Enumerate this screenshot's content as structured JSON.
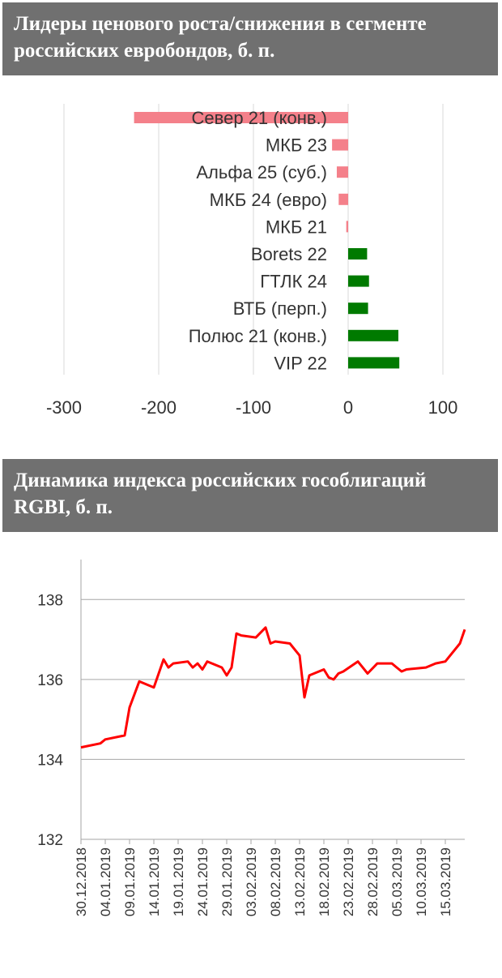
{
  "chart_data": [
    {
      "type": "bar",
      "orientation": "horizontal",
      "title": "Лидеры ценового роста/снижения в сегменте российских евробондов, б. п.",
      "categories": [
        "Север 21 (конв.)",
        "МКБ 23",
        "Альфа 25 (суб.)",
        "МКБ 24 (евро)",
        "МКБ 21",
        "Borets 22",
        "ГТЛК 24",
        "ВТБ (перп.)",
        "Полюс 21 (конв.)",
        "VIP 22"
      ],
      "values": [
        -226,
        -17,
        -12,
        -10,
        -2,
        20,
        22,
        21,
        53,
        54
      ],
      "xlim": [
        -300,
        120
      ],
      "xticks": [
        -300,
        -200,
        -100,
        0,
        100
      ],
      "colors": {
        "negative": "#f4808a",
        "positive": "#007a00"
      },
      "grid": true
    },
    {
      "type": "line",
      "title": "Динамика индекса российских гособлигаций RGBI, б. п.",
      "ylim": [
        132,
        139
      ],
      "yticks": [
        132,
        134,
        136,
        138
      ],
      "xtick_labels": [
        "30.12.2018",
        "04.01.2019",
        "09.01.2019",
        "14.01.2019",
        "19.01.2019",
        "24.01.2019",
        "29.01.2019",
        "03.02.2019",
        "08.02.2019",
        "13.02.2019",
        "18.02.2019",
        "23.02.2019",
        "28.02.2019",
        "05.03.2019",
        "10.03.2019",
        "15.03.2019"
      ],
      "x_start": "30.12.2018",
      "x_end": "19.03.2019",
      "series": [
        {
          "name": "",
          "color": "#ff0000",
          "points": [
            [
              "30.12.2018",
              134.3
            ],
            [
              "03.01.2019",
              134.4
            ],
            [
              "04.01.2019",
              134.5
            ],
            [
              "08.01.2019",
              134.6
            ],
            [
              "09.01.2019",
              135.3
            ],
            [
              "11.01.2019",
              135.95
            ],
            [
              "14.01.2019",
              135.8
            ],
            [
              "16.01.2019",
              136.5
            ],
            [
              "17.01.2019",
              136.3
            ],
            [
              "18.01.2019",
              136.4
            ],
            [
              "21.01.2019",
              136.45
            ],
            [
              "22.01.2019",
              136.3
            ],
            [
              "23.01.2019",
              136.4
            ],
            [
              "24.01.2019",
              136.25
            ],
            [
              "25.01.2019",
              136.45
            ],
            [
              "28.01.2019",
              136.3
            ],
            [
              "29.01.2019",
              136.1
            ],
            [
              "30.01.2019",
              136.3
            ],
            [
              "31.01.2019",
              137.15
            ],
            [
              "01.02.2019",
              137.1
            ],
            [
              "04.02.2019",
              137.05
            ],
            [
              "06.02.2019",
              137.3
            ],
            [
              "07.02.2019",
              136.9
            ],
            [
              "08.02.2019",
              136.95
            ],
            [
              "11.02.2019",
              136.9
            ],
            [
              "13.02.2019",
              136.6
            ],
            [
              "14.02.2019",
              135.55
            ],
            [
              "15.02.2019",
              136.1
            ],
            [
              "18.02.2019",
              136.25
            ],
            [
              "19.02.2019",
              136.05
            ],
            [
              "20.02.2019",
              136.0
            ],
            [
              "21.02.2019",
              136.15
            ],
            [
              "22.02.2019",
              136.2
            ],
            [
              "25.02.2019",
              136.45
            ],
            [
              "26.02.2019",
              136.3
            ],
            [
              "27.02.2019",
              136.15
            ],
            [
              "01.03.2019",
              136.4
            ],
            [
              "04.03.2019",
              136.4
            ],
            [
              "05.03.2019",
              136.3
            ],
            [
              "06.03.2019",
              136.2
            ],
            [
              "07.03.2019",
              136.25
            ],
            [
              "11.03.2019",
              136.3
            ],
            [
              "13.03.2019",
              136.4
            ],
            [
              "15.03.2019",
              136.45
            ],
            [
              "18.03.2019",
              136.9
            ],
            [
              "19.03.2019",
              137.25
            ]
          ]
        }
      ],
      "grid": true
    }
  ]
}
